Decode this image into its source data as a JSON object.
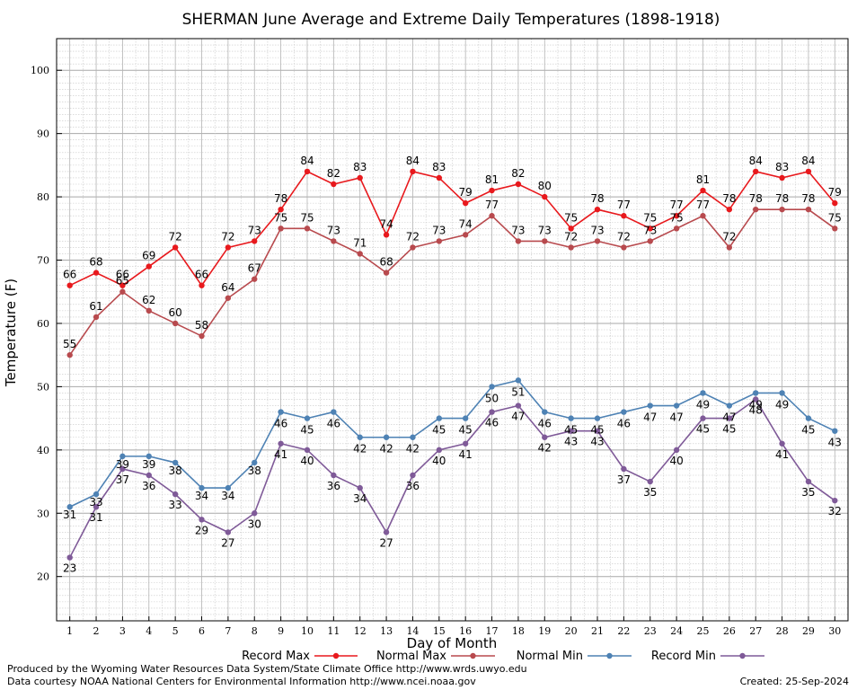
{
  "chart_data": {
    "type": "line",
    "title": "SHERMAN June Average and Extreme Daily Temperatures (1898-1918)",
    "xlabel": "Day of Month",
    "ylabel": "Temperature (F)",
    "xlim": [
      0.5,
      30.5
    ],
    "ylim": [
      13,
      105
    ],
    "grid": true,
    "x": [
      1,
      2,
      3,
      4,
      5,
      6,
      7,
      8,
      9,
      10,
      11,
      12,
      13,
      14,
      15,
      16,
      17,
      18,
      19,
      20,
      21,
      22,
      23,
      24,
      25,
      26,
      27,
      28,
      29,
      30
    ],
    "yticks": [
      20,
      30,
      40,
      50,
      60,
      70,
      80,
      90,
      100
    ],
    "legend_position": "bottom",
    "series": [
      {
        "name": "Record Max",
        "color": "#e8191d",
        "values": [
          66,
          68,
          66,
          69,
          72,
          66,
          72,
          73,
          78,
          84,
          82,
          83,
          74,
          84,
          83,
          79,
          81,
          82,
          80,
          75,
          78,
          77,
          75,
          77,
          81,
          78,
          84,
          83,
          84,
          79
        ]
      },
      {
        "name": "Normal Max",
        "color": "#b84a4e",
        "values": [
          55,
          61,
          65,
          62,
          60,
          58,
          64,
          67,
          75,
          75,
          73,
          71,
          68,
          72,
          73,
          74,
          77,
          73,
          73,
          72,
          73,
          72,
          73,
          75,
          77,
          72,
          78,
          78,
          78,
          75
        ]
      },
      {
        "name": "Normal Min",
        "color": "#4e82b4",
        "values": [
          31,
          33,
          39,
          39,
          38,
          34,
          34,
          38,
          46,
          45,
          46,
          42,
          42,
          42,
          45,
          45,
          50,
          51,
          46,
          45,
          45,
          46,
          47,
          47,
          49,
          47,
          49,
          49,
          45,
          43
        ]
      },
      {
        "name": "Record Min",
        "color": "#7f5a98",
        "values": [
          23,
          31,
          37,
          36,
          33,
          29,
          27,
          30,
          41,
          40,
          36,
          34,
          27,
          36,
          40,
          41,
          46,
          47,
          42,
          43,
          43,
          37,
          35,
          40,
          45,
          45,
          48,
          41,
          35,
          32
        ]
      }
    ]
  },
  "footer": {
    "line1": "Produced by the Wyoming Water Resources Data System/State Climate Office http://www.wrds.uwyo.edu",
    "line2": "Data courtesy NOAA National Centers for Environmental Information http://www.ncei.noaa.gov",
    "created": "Created: 25-Sep-2024"
  }
}
